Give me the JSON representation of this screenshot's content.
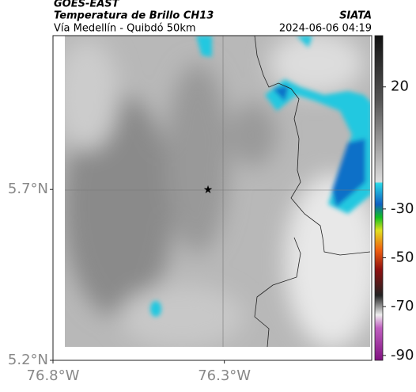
{
  "header": {
    "source": "GOES-EAST",
    "product": "Temperatura de Brillo CH13",
    "region": "Vía Medellín - Quibdó 50km",
    "agency": "SIATA",
    "datetime": "2024-06-06 04:19"
  },
  "map": {
    "xlim": [
      -76.8,
      -75.87
    ],
    "ylim": [
      5.2,
      6.15
    ],
    "xticks": [
      {
        "value": -76.8,
        "label": "76.8°W"
      },
      {
        "value": -76.3,
        "label": "76.3°W"
      }
    ],
    "yticks": [
      {
        "value": 5.7,
        "label": "5.7°N"
      },
      {
        "value": 5.2,
        "label": "5.2°N"
      }
    ]
  },
  "colorbar": {
    "lim": [
      -92,
      41
    ],
    "ticks": [
      20,
      -30,
      -50,
      -70,
      -90
    ]
  }
}
